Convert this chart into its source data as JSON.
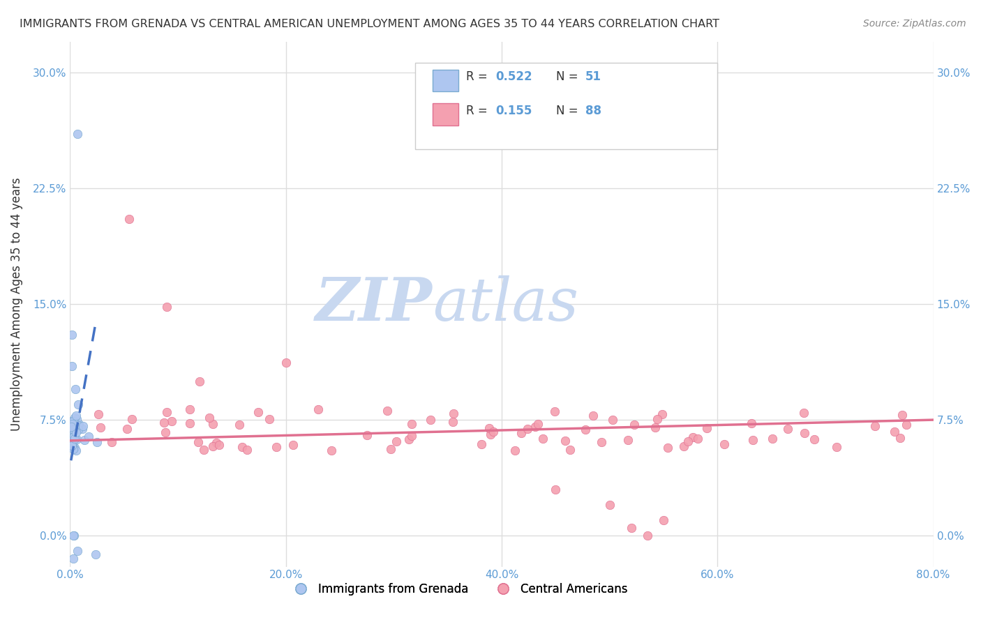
{
  "title": "IMMIGRANTS FROM GRENADA VS CENTRAL AMERICAN UNEMPLOYMENT AMONG AGES 35 TO 44 YEARS CORRELATION CHART",
  "source": "Source: ZipAtlas.com",
  "ylabel": "Unemployment Among Ages 35 to 44 years",
  "ytick_labels": [
    "0.0%",
    "7.5%",
    "15.0%",
    "22.5%",
    "30.0%"
  ],
  "ytick_values": [
    0.0,
    0.075,
    0.15,
    0.225,
    0.3
  ],
  "xtick_labels": [
    "0.0%",
    "20.0%",
    "40.0%",
    "60.0%",
    "80.0%"
  ],
  "xtick_values": [
    0.0,
    0.2,
    0.4,
    0.6,
    0.8
  ],
  "xlim": [
    0.0,
    0.8
  ],
  "ylim": [
    -0.02,
    0.32
  ],
  "series1_color": "#aec6f0",
  "series1_edge": "#7aaad0",
  "series1_line_color": "#4472c4",
  "series2_color": "#f4a0b0",
  "series2_edge": "#e07090",
  "series2_line_color": "#e07090",
  "watermark_zip": "ZIP",
  "watermark_atlas": "atlas",
  "watermark_color_zip": "#c8d8f0",
  "watermark_color_atlas": "#c8d8f0",
  "grid_color": "#dddddd",
  "background_color": "#ffffff",
  "R1": "0.522",
  "N1": "51",
  "R2": "0.155",
  "N2": "88",
  "label1": "Immigrants from Grenada",
  "label2": "Central Americans"
}
